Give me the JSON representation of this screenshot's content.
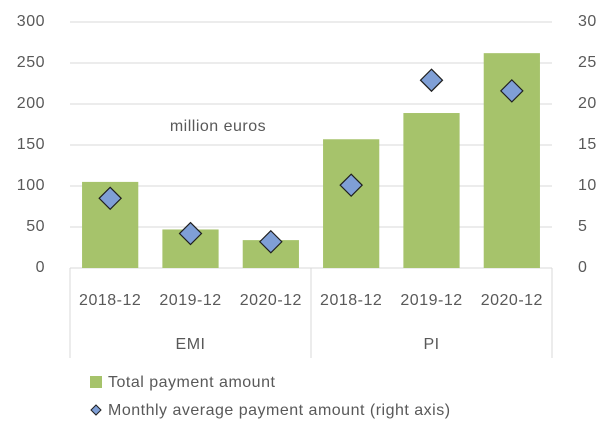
{
  "chart_data": {
    "type": "bar_marker",
    "annotation": "million euros",
    "groups": [
      {
        "name": "EMI",
        "categories": [
          "2018-12",
          "2019-12",
          "2020-12"
        ]
      },
      {
        "name": "PI",
        "categories": [
          "2018-12",
          "2019-12",
          "2020-12"
        ]
      }
    ],
    "series": [
      {
        "name": "Total payment amount",
        "color": "#a6c36b",
        "type": "bar",
        "axis": "y",
        "values": [
          105,
          47,
          34,
          157,
          189,
          262
        ]
      },
      {
        "name": "Monthly average payment amount (right axis)",
        "color": "#7f9fd6",
        "type": "marker",
        "axis": "y2",
        "values": [
          8.5,
          4.2,
          3.2,
          10.1,
          22.9,
          21.6
        ]
      }
    ],
    "ylim": [
      0,
      300
    ],
    "yticks": [
      0,
      50,
      100,
      150,
      200,
      250,
      300
    ],
    "y2lim": [
      0,
      30
    ],
    "y2ticks": [
      0,
      5,
      10,
      15,
      20,
      25,
      30
    ],
    "grid": true
  }
}
